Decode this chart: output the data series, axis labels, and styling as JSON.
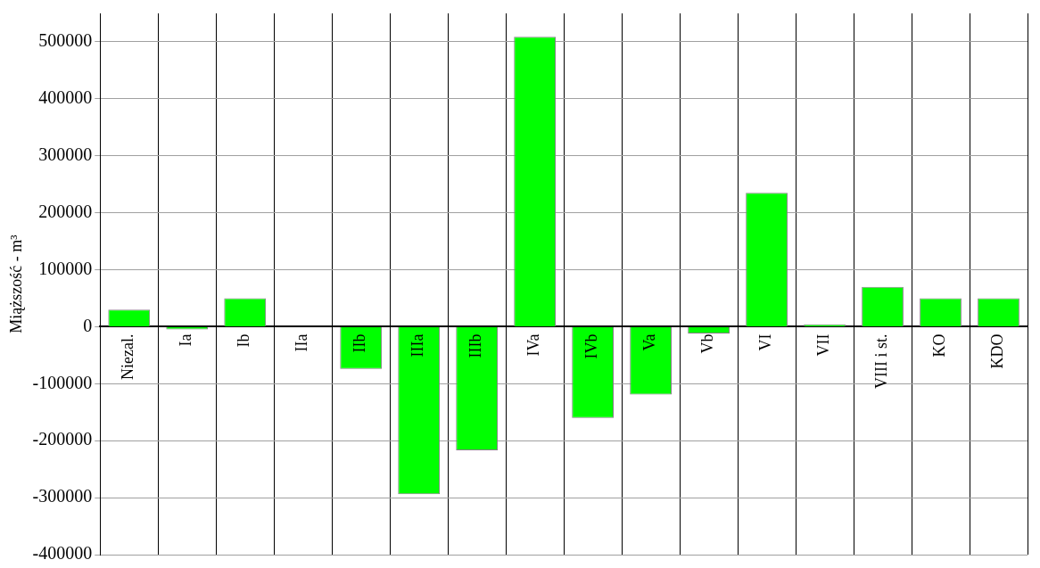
{
  "chart_data": {
    "type": "bar",
    "ylabel": "Miąższość - m³",
    "categories": [
      "Niezal.",
      "Ia",
      "Ib",
      "IIa",
      "IIb",
      "IIIa",
      "IIIb",
      "IVa",
      "IVb",
      "Va",
      "Vb",
      "VI",
      "VII",
      "VIII i st.",
      "KO",
      "KDO"
    ],
    "values": [
      30000,
      -5000,
      50000,
      0,
      -74000,
      -294000,
      -217000,
      509000,
      -160000,
      -119000,
      -12000,
      235000,
      4000,
      70000,
      50000,
      50000
    ],
    "color": "#00ff00",
    "ylim": [
      -400000,
      550000
    ],
    "yticks": [
      -400000,
      -300000,
      -200000,
      -100000,
      0,
      100000,
      200000,
      300000,
      400000,
      500000
    ],
    "grid": true
  }
}
